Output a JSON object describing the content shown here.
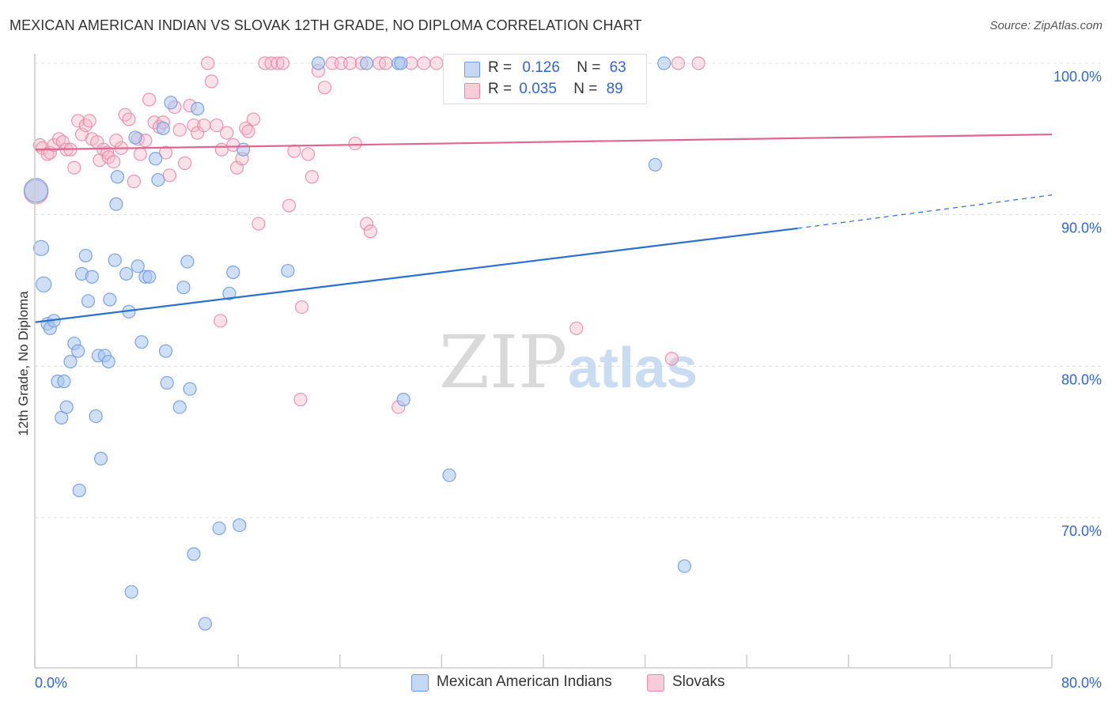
{
  "title": "MEXICAN AMERICAN INDIAN VS SLOVAK 12TH GRADE, NO DIPLOMA CORRELATION CHART",
  "source": "Source: ZipAtlas.com",
  "watermark": {
    "zip": "ZIP",
    "atlas": "atlas"
  },
  "legend": {
    "rows": [
      {
        "r_label": "R =",
        "r_value": "0.126",
        "n_label": "N =",
        "n_value": "63"
      },
      {
        "r_label": "R =",
        "r_value": "0.035",
        "n_label": "N =",
        "n_value": "89"
      }
    ]
  },
  "colors": {
    "blue_fill": "#a7c4ee",
    "blue_stroke": "#6f9be0",
    "blue_line": "#2a6fd1",
    "pink_fill": "#f5b6c8",
    "pink_stroke": "#e88aa8",
    "pink_line": "#e06690",
    "grid": "#dddddd",
    "tick_text": "#3366cc"
  },
  "chart_data": {
    "type": "scatter",
    "title": "MEXICAN AMERICAN INDIAN VS SLOVAK 12TH GRADE, NO DIPLOMA CORRELATION CHART",
    "xlabel": "",
    "ylabel": "12th Grade, No Diploma",
    "xlim": [
      0,
      80
    ],
    "ylim": [
      60.5,
      101.5
    ],
    "x_tick_labels": [
      "0.0%",
      "80.0%"
    ],
    "y_ticks": [
      70,
      80,
      90,
      100
    ],
    "y_tick_labels": [
      "70.0%",
      "80.0%",
      "90.0%",
      "100.0%"
    ],
    "grid": true,
    "legend_position": "top-center",
    "series": [
      {
        "name": "Mexican American Indians",
        "color": "#a7c4ee",
        "r": 0.126,
        "n": 63,
        "trend": {
          "x": [
            0,
            60
          ],
          "y": [
            82.9,
            89.1
          ],
          "dashed_to": [
            80,
            91.3
          ]
        },
        "points": [
          [
            0.1,
            91.6
          ],
          [
            0.5,
            87.8
          ],
          [
            0.7,
            85.4
          ],
          [
            1.0,
            82.8
          ],
          [
            1.2,
            82.5
          ],
          [
            1.5,
            83.0
          ],
          [
            1.8,
            79.0
          ],
          [
            2.1,
            76.6
          ],
          [
            2.3,
            79.0
          ],
          [
            2.5,
            77.3
          ],
          [
            2.8,
            80.3
          ],
          [
            3.1,
            81.5
          ],
          [
            3.4,
            81.0
          ],
          [
            3.5,
            71.8
          ],
          [
            3.7,
            86.1
          ],
          [
            4.0,
            87.3
          ],
          [
            4.2,
            84.3
          ],
          [
            4.5,
            85.9
          ],
          [
            4.8,
            76.7
          ],
          [
            5.0,
            80.7
          ],
          [
            5.2,
            73.9
          ],
          [
            5.5,
            80.7
          ],
          [
            5.8,
            80.3
          ],
          [
            5.9,
            84.4
          ],
          [
            6.3,
            87.0
          ],
          [
            6.5,
            92.5
          ],
          [
            6.4,
            90.7
          ],
          [
            7.2,
            86.1
          ],
          [
            7.4,
            83.6
          ],
          [
            7.6,
            65.1
          ],
          [
            7.9,
            95.1
          ],
          [
            8.1,
            86.6
          ],
          [
            8.4,
            81.6
          ],
          [
            8.7,
            85.9
          ],
          [
            9.0,
            85.9
          ],
          [
            9.5,
            93.7
          ],
          [
            9.7,
            92.3
          ],
          [
            10.1,
            95.7
          ],
          [
            10.3,
            81.0
          ],
          [
            10.4,
            78.9
          ],
          [
            10.7,
            97.4
          ],
          [
            11.4,
            77.3
          ],
          [
            11.7,
            85.2
          ],
          [
            12.0,
            86.9
          ],
          [
            12.2,
            78.5
          ],
          [
            12.5,
            67.6
          ],
          [
            12.8,
            97.0
          ],
          [
            13.4,
            63.0
          ],
          [
            14.5,
            69.3
          ],
          [
            15.3,
            84.8
          ],
          [
            15.6,
            86.2
          ],
          [
            16.4,
            94.3
          ],
          [
            16.1,
            69.5
          ],
          [
            19.9,
            86.3
          ],
          [
            22.3,
            100.0
          ],
          [
            26.1,
            100.0
          ],
          [
            28.6,
            100.0
          ],
          [
            28.8,
            100.0
          ],
          [
            29.0,
            77.8
          ],
          [
            32.6,
            72.8
          ],
          [
            48.8,
            93.3
          ],
          [
            51.1,
            66.8
          ],
          [
            49.5,
            100.0
          ]
        ]
      },
      {
        "name": "Slovaks",
        "color": "#f5b6c8",
        "r": 0.035,
        "n": 89,
        "trend": {
          "x": [
            0,
            80
          ],
          "y": [
            94.3,
            95.3
          ]
        },
        "points": [
          [
            0.1,
            91.5
          ],
          [
            0.4,
            94.6
          ],
          [
            0.6,
            94.4
          ],
          [
            1.0,
            94.0
          ],
          [
            1.2,
            94.1
          ],
          [
            1.5,
            94.6
          ],
          [
            1.9,
            95.0
          ],
          [
            2.2,
            94.8
          ],
          [
            2.5,
            94.3
          ],
          [
            2.8,
            94.3
          ],
          [
            3.1,
            93.1
          ],
          [
            3.4,
            96.2
          ],
          [
            3.7,
            95.3
          ],
          [
            4.0,
            95.9
          ],
          [
            4.3,
            96.2
          ],
          [
            4.5,
            95.0
          ],
          [
            4.9,
            94.8
          ],
          [
            5.1,
            93.6
          ],
          [
            5.4,
            94.3
          ],
          [
            5.7,
            94.1
          ],
          [
            5.8,
            93.8
          ],
          [
            6.2,
            93.5
          ],
          [
            6.4,
            94.9
          ],
          [
            6.8,
            94.4
          ],
          [
            7.1,
            96.6
          ],
          [
            7.4,
            96.3
          ],
          [
            7.8,
            92.2
          ],
          [
            8.1,
            95.0
          ],
          [
            8.3,
            94.0
          ],
          [
            8.7,
            94.9
          ],
          [
            9.0,
            97.6
          ],
          [
            9.4,
            96.1
          ],
          [
            9.8,
            95.8
          ],
          [
            10.1,
            96.1
          ],
          [
            10.3,
            94.1
          ],
          [
            10.6,
            92.6
          ],
          [
            11.0,
            97.1
          ],
          [
            11.4,
            95.6
          ],
          [
            11.8,
            93.4
          ],
          [
            12.2,
            97.2
          ],
          [
            12.5,
            95.9
          ],
          [
            12.8,
            95.4
          ],
          [
            13.3,
            95.9
          ],
          [
            13.6,
            100.0
          ],
          [
            13.9,
            98.8
          ],
          [
            14.3,
            95.9
          ],
          [
            14.7,
            94.3
          ],
          [
            15.1,
            95.4
          ],
          [
            15.6,
            94.6
          ],
          [
            15.9,
            93.1
          ],
          [
            16.3,
            93.7
          ],
          [
            16.6,
            95.7
          ],
          [
            16.8,
            95.5
          ],
          [
            17.2,
            96.3
          ],
          [
            17.6,
            89.4
          ],
          [
            18.1,
            100.0
          ],
          [
            18.6,
            100.0
          ],
          [
            19.1,
            100.0
          ],
          [
            19.5,
            100.0
          ],
          [
            20.0,
            90.6
          ],
          [
            20.4,
            94.2
          ],
          [
            21.0,
            83.9
          ],
          [
            21.5,
            94.0
          ],
          [
            21.8,
            92.5
          ],
          [
            22.3,
            99.5
          ],
          [
            22.8,
            98.4
          ],
          [
            23.4,
            100.0
          ],
          [
            24.1,
            100.0
          ],
          [
            24.8,
            100.0
          ],
          [
            25.2,
            94.7
          ],
          [
            25.7,
            100.0
          ],
          [
            26.1,
            89.4
          ],
          [
            26.4,
            88.9
          ],
          [
            27.1,
            100.0
          ],
          [
            27.6,
            100.0
          ],
          [
            28.6,
            77.3
          ],
          [
            29.6,
            100.0
          ],
          [
            30.6,
            100.0
          ],
          [
            31.6,
            100.0
          ],
          [
            33.2,
            100.0
          ],
          [
            34.3,
            100.0
          ],
          [
            35.4,
            100.0
          ],
          [
            36.4,
            100.0
          ],
          [
            42.6,
            82.5
          ],
          [
            50.1,
            80.5
          ],
          [
            50.6,
            100.0
          ],
          [
            52.2,
            100.0
          ],
          [
            14.6,
            83.0
          ],
          [
            20.9,
            77.8
          ]
        ]
      }
    ]
  },
  "bottom_legend": [
    {
      "label": "Mexican American Indians"
    },
    {
      "label": "Slovaks"
    }
  ]
}
